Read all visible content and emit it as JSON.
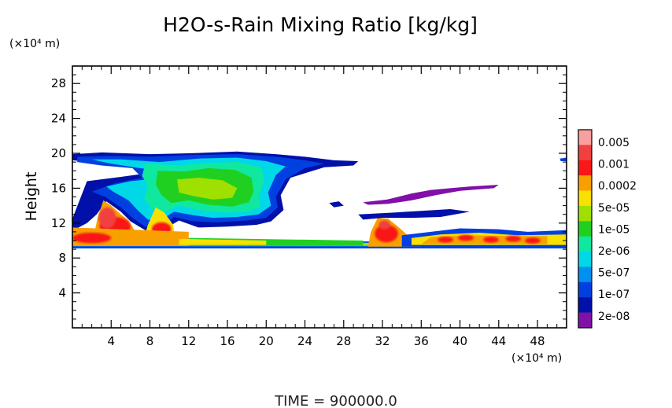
{
  "chart_data": {
    "type": "heatmap",
    "title": "H2O-s-Rain Mixing Ratio [kg/kg]",
    "xlabel": "",
    "ylabel": "Height",
    "x_unit_label": "(×10⁴ m)",
    "y_unit_label": "(×10⁴ m)",
    "xlim": [
      0,
      51
    ],
    "ylim": [
      0,
      30
    ],
    "x_ticks": [
      4,
      8,
      12,
      16,
      20,
      24,
      28,
      32,
      36,
      40,
      44,
      48
    ],
    "y_ticks": [
      4,
      8,
      12,
      16,
      20,
      24,
      28
    ],
    "x_tick_labels": [
      "4",
      "8",
      "12",
      "16",
      "20",
      "24",
      "28",
      "32",
      "36",
      "40",
      "44",
      "48"
    ],
    "y_tick_labels": [
      "4",
      "8",
      "12",
      "16",
      "20",
      "24",
      "28"
    ],
    "colorbar": {
      "labels": [
        "0.005",
        "0.001",
        "0.0002",
        "5e-05",
        "1e-05",
        "2e-06",
        "5e-07",
        "1e-07",
        "2e-08"
      ],
      "colors_top_to_bottom": [
        "#f8a0a0",
        "#f04040",
        "#f81818",
        "#f8a000",
        "#f8e000",
        "#a0e000",
        "#20d020",
        "#10e8a0",
        "#00d8e8",
        "#0090f0",
        "#0040e0",
        "#0010a8",
        "#8010a8"
      ]
    },
    "features": [
      {
        "name": "anvil cloud",
        "x": [
          0,
          29.5
        ],
        "y": [
          12,
          20
        ],
        "level": "1e-07 to 5e-05"
      },
      {
        "name": "convective core",
        "x": [
          2,
          7
        ],
        "y": [
          9.5,
          14
        ],
        "level": "0.001"
      },
      {
        "name": "convective core",
        "x": [
          31,
          34
        ],
        "y": [
          9.5,
          12.5
        ],
        "level": "0.001"
      },
      {
        "name": "melting layer band",
        "x": [
          0,
          51
        ],
        "y": [
          9.1,
          11
        ],
        "level": "1e-07 to 0.001"
      },
      {
        "name": "thin cirrus",
        "x": [
          30,
          44
        ],
        "y": [
          14.3,
          16.5
        ],
        "level": "2e-08"
      }
    ],
    "footer": "TIME = 900000.0"
  }
}
